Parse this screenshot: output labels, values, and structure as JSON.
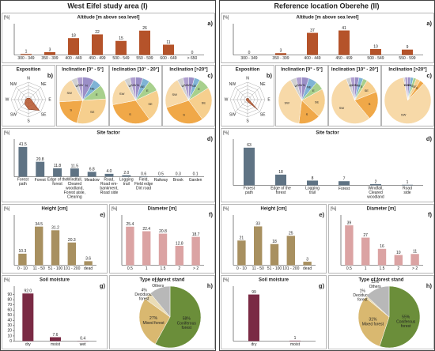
{
  "headers": [
    "West Eifel study area (I)",
    "Reference location Oberehe (II)"
  ],
  "chart_data": [
    {
      "type": "bar",
      "panel": "a)",
      "title": "Altitude [m above sea level]",
      "ylabel": "[%]",
      "color": "#b5532a",
      "categories": [
        "300 - 349",
        "350 - 399",
        "400 - 449",
        "450 - 499",
        "500 - 549",
        "550 - 599",
        "600 - 649",
        "> 650"
      ],
      "values": [
        1,
        3,
        18,
        22,
        15,
        26,
        11,
        0
      ],
      "ylim": [
        0,
        30
      ]
    },
    {
      "type": "radar",
      "panel": "b)",
      "title": "Exposition",
      "color": "#b5532a",
      "categories": [
        "N",
        "NE",
        "E",
        "SE",
        "S",
        "SW",
        "W",
        "NW"
      ],
      "values": [
        2,
        3,
        4,
        22,
        14,
        8,
        4,
        3
      ],
      "rlim": [
        0,
        25
      ]
    },
    {
      "type": "pie",
      "title": "Inclination [0° - 5°]",
      "colors": [
        "#9b8fc7",
        "#7fb3d5",
        "#a8d08d",
        "#f6cf8e",
        "#f0a848",
        "#f7d9a8",
        "#d0d0d0",
        "#b0a0d0"
      ],
      "categories": [
        "N",
        "NE",
        "E",
        "SE",
        "S",
        "SW",
        "W",
        "NW"
      ],
      "values": [
        8,
        6,
        10,
        30,
        20,
        18,
        4,
        4
      ]
    },
    {
      "type": "pie",
      "title": "Inclination [10° - 20°]",
      "colors": [
        "#9b8fc7",
        "#7fb3d5",
        "#a8d08d",
        "#f6cf8e",
        "#f0a848",
        "#f7d9a8",
        "#d0d0d0",
        "#b0a0d0"
      ],
      "categories": [
        "N",
        "NE",
        "E",
        "SE",
        "S",
        "SW",
        "W",
        "NW"
      ],
      "values": [
        5,
        5,
        8,
        22,
        32,
        20,
        4,
        4
      ]
    },
    {
      "type": "pie",
      "panel": "c)",
      "title": "Inclination [>20°]",
      "colors": [
        "#9b8fc7",
        "#7fb3d5",
        "#a8d08d",
        "#f6cf8e",
        "#f0a848",
        "#f7d9a8",
        "#d0d0d0",
        "#b0a0d0"
      ],
      "categories": [
        "N",
        "NE",
        "E",
        "SE",
        "S",
        "SW",
        "W",
        "NW"
      ],
      "values": [
        4,
        4,
        8,
        24,
        30,
        22,
        4,
        4
      ]
    },
    {
      "type": "bar",
      "panel": "d)",
      "title": "Site factor",
      "ylabel": "[%]",
      "color": "#5f7384",
      "categories": [
        "Forest\npath",
        "Forest",
        "Edge of the\nforest",
        "Windfall,\nCleared\nwoodland,\nForest aisle,\nClearing",
        "Meadow",
        "Road,\nRoad em-\nbankment,\nRoad side",
        "Logging\ntrail",
        "Field,\nField edge\nDirt road",
        "Railway",
        "Brook",
        "Garden"
      ],
      "values": [
        41.5,
        20.8,
        11.8,
        11.5,
        6.8,
        4,
        2,
        0.6,
        0.5,
        0.3,
        0.1
      ],
      "value_labels": [
        "41.5",
        "20.8",
        "11.8",
        "11.5",
        "6.8",
        "4.0",
        "2.0",
        "0.6",
        "0.5",
        "0.3",
        "0.1"
      ],
      "ylim": [
        0,
        48
      ]
    },
    {
      "type": "bar",
      "panel": "e)",
      "title": "Height [cm]",
      "ylabel": "[%]",
      "color": "#a89060",
      "categories": [
        "0 - 10",
        "11 - 50",
        "51 - 100",
        "101 - 200",
        "dead"
      ],
      "values": [
        10.3,
        34.5,
        31.2,
        20.3,
        3.6
      ],
      "ylim": [
        0,
        42
      ]
    },
    {
      "type": "bar",
      "panel": "f)",
      "title": "Diameter [m]",
      "ylabel": "[%]",
      "color": "#dba3a3",
      "categories": [
        "0.5",
        "1",
        "1.5",
        "2",
        "> 2"
      ],
      "values": [
        25.4,
        22.4,
        20.8,
        12.8,
        18.7
      ],
      "ylim": [
        0,
        31
      ]
    },
    {
      "type": "bar",
      "panel": "g)",
      "title": "Soil moisture",
      "ylabel": "[%]",
      "color": "#7a2a44",
      "categories": [
        "dry",
        "moist",
        "wet"
      ],
      "values": [
        92,
        7.6,
        0.4
      ],
      "value_labels": [
        "92.0",
        "7.6",
        "0.4"
      ],
      "ylim": [
        0,
        100
      ],
      "yticks": [
        0,
        10,
        20,
        30,
        40,
        50,
        60,
        70,
        80,
        90
      ]
    },
    {
      "type": "pie",
      "panel": "h)",
      "title": "Type of forest stand",
      "colors": [
        "#6b8e3a",
        "#d9b870",
        "#eadcb6",
        "#b8b8b8"
      ],
      "categories": [
        "Coniferous\nforest",
        "Mixed forest",
        "Deciduous\nforest",
        "Others"
      ],
      "values": [
        58,
        27,
        4,
        11
      ],
      "value_labels": [
        "58%",
        "27%",
        "4%",
        "11%"
      ]
    },
    {
      "type": "bar",
      "panel": "a)",
      "title": "Altitude [m above sea level]",
      "ylabel": "[%]",
      "color": "#b5532a",
      "categories": [
        "300 - 349",
        "350 - 399",
        "400 - 449",
        "450 - 499",
        "500 - 549",
        "550 - 599"
      ],
      "values": [
        0,
        3,
        37,
        41,
        10,
        9
      ],
      "ylim": [
        0,
        47
      ]
    },
    {
      "type": "radar",
      "panel": "b)",
      "title": "Exposition",
      "color": "#b5532a",
      "categories": [
        "N",
        "NE",
        "E",
        "SE",
        "S",
        "SW",
        "W",
        "NW"
      ],
      "values": [
        2,
        2,
        2,
        20,
        3,
        2,
        2,
        2
      ],
      "rlim": [
        0,
        25
      ]
    },
    {
      "type": "pie",
      "title": "Inclination [0° - 5°]",
      "colors": [
        "#9b8fc7",
        "#7fb3d5",
        "#a8d08d",
        "#f6cf8e",
        "#f0a848",
        "#f7d9a8",
        "#d0d0d0",
        "#b0a0d0"
      ],
      "categories": [
        "N",
        "NE",
        "E",
        "SE",
        "S",
        "SW",
        "W",
        "NW"
      ],
      "values": [
        5,
        6,
        6,
        20,
        15,
        40,
        4,
        4
      ]
    },
    {
      "type": "pie",
      "title": "Inclination [10° - 20°]",
      "colors": [
        "#9b8fc7",
        "#7fb3d5",
        "#a8d08d",
        "#f6cf8e",
        "#f0a848",
        "#f7d9a8",
        "#d0d0d0",
        "#b0a0d0"
      ],
      "categories": [
        "N",
        "NE",
        "E",
        "SE",
        "S",
        "SW",
        "W",
        "NW"
      ],
      "values": [
        3,
        3,
        3,
        10,
        20,
        55,
        3,
        3
      ]
    },
    {
      "type": "pie",
      "panel": "c)",
      "title": "Inclination [>20°]",
      "colors": [
        "#9b8fc7",
        "#7fb3d5",
        "#a8d08d",
        "#f6cf8e",
        "#f0a848",
        "#f7d9a8",
        "#d0d0d0",
        "#b0a0d0"
      ],
      "categories": [
        "N",
        "NE",
        "E",
        "SE",
        "S",
        "SW",
        "W",
        "NW"
      ],
      "values": [
        2,
        2,
        2,
        3,
        3,
        85,
        1,
        2
      ]
    },
    {
      "type": "bar",
      "panel": "d)",
      "title": "Site factor",
      "ylabel": "[%]",
      "color": "#5f7384",
      "categories": [
        "Forest\npath",
        "Edge of the\nforest",
        "Logging\ntrail",
        "Forest",
        "Windfall,\nCleared\nwoodland",
        "Road\nside"
      ],
      "values": [
        63,
        18,
        8,
        7,
        2,
        1
      ],
      "ylim": [
        0,
        72
      ]
    },
    {
      "type": "bar",
      "panel": "e)",
      "title": "Height [cm]",
      "ylabel": "[%]",
      "color": "#a89060",
      "categories": [
        "0 - 10",
        "11 - 50",
        "51 - 100",
        "101 - 200",
        "dead"
      ],
      "values": [
        21,
        33,
        18,
        25,
        3
      ],
      "ylim": [
        0,
        40
      ]
    },
    {
      "type": "bar",
      "panel": "f)",
      "title": "Diameter [m]",
      "ylabel": "[%]",
      "color": "#dba3a3",
      "categories": [
        "0.5",
        "1",
        "1.5",
        "2",
        "> 2"
      ],
      "values": [
        39,
        27,
        16,
        10,
        11
      ],
      "ylim": [
        0,
        46
      ]
    },
    {
      "type": "bar",
      "panel": "g)",
      "title": "Soil moisture",
      "ylabel": "[%]",
      "color": "#7a2a44",
      "categories": [
        "dry",
        "moist"
      ],
      "values": [
        99,
        1
      ],
      "ylim": [
        0,
        110
      ]
    },
    {
      "type": "pie",
      "panel": "h)",
      "title": "Type of forest stand",
      "colors": [
        "#6b8e3a",
        "#d9b870",
        "#eadcb6",
        "#b8b8b8"
      ],
      "categories": [
        "Coniferous\nforest",
        "Mixed forest",
        "Deciduous\nforest",
        "Others"
      ],
      "values": [
        55,
        31,
        1,
        13
      ],
      "value_labels": [
        "55%",
        "31%",
        "1%",
        "13%"
      ]
    }
  ]
}
